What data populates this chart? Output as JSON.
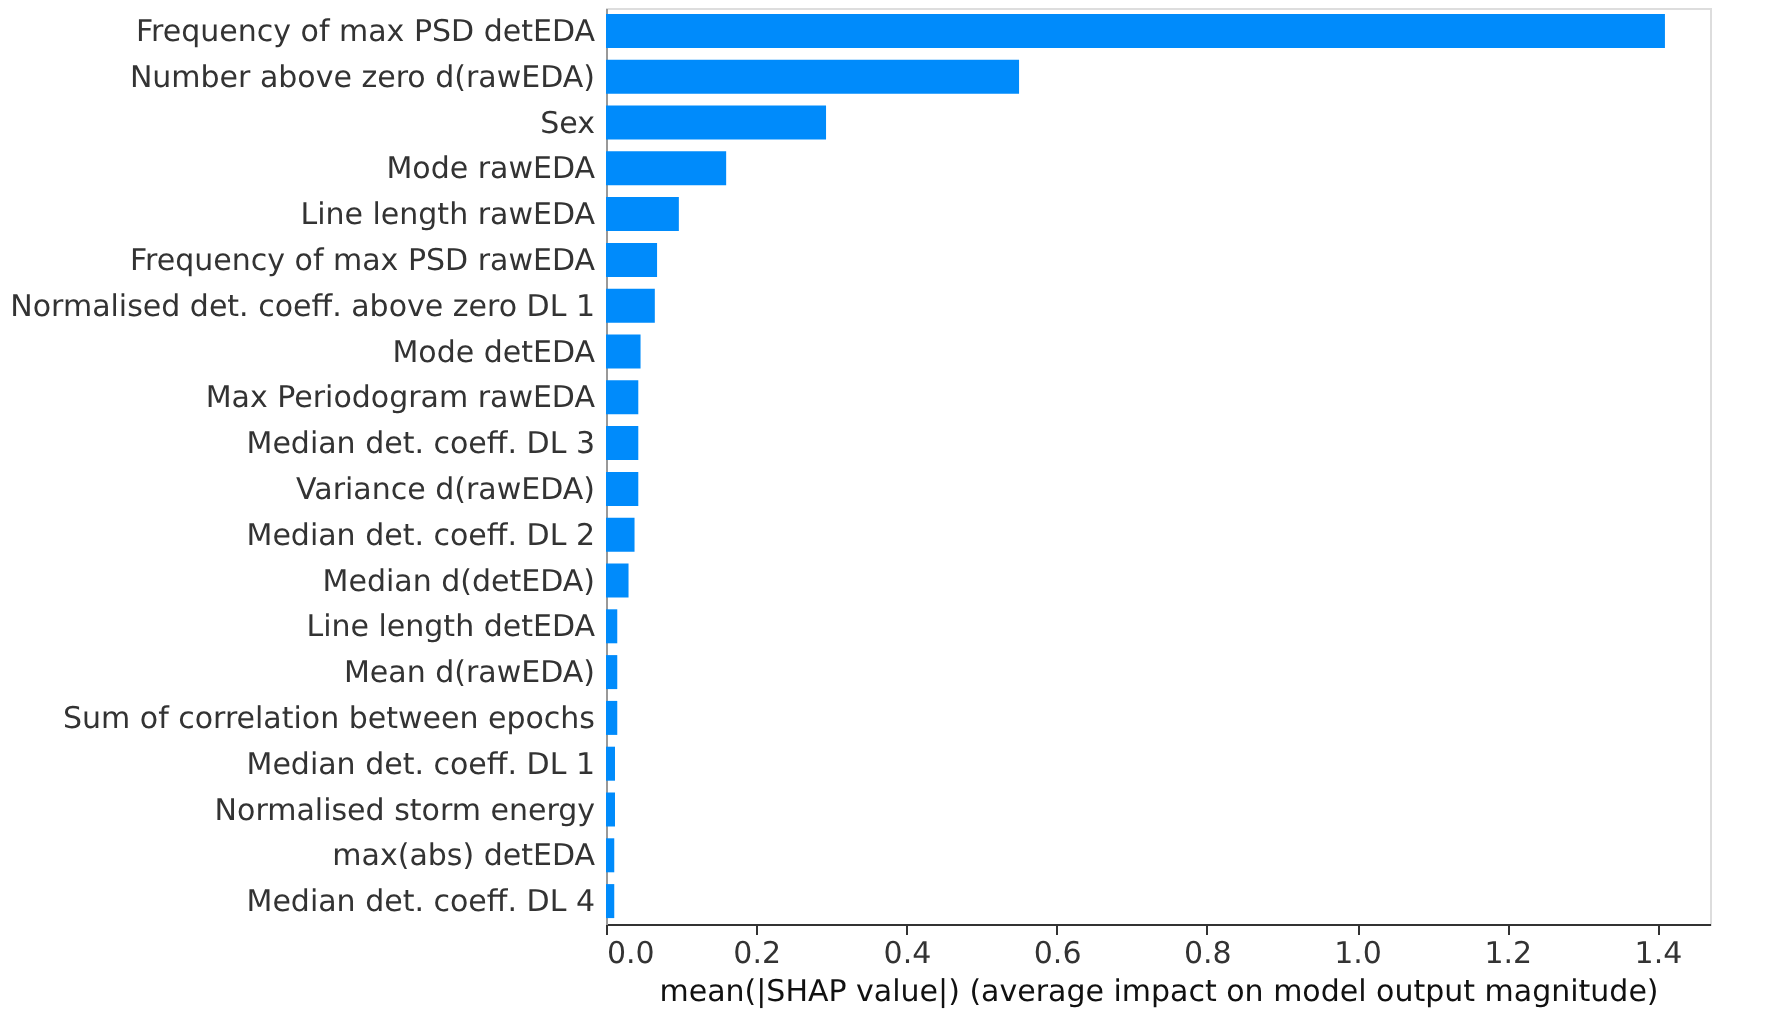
{
  "chart_data": {
    "type": "bar",
    "orientation": "horizontal",
    "xlabel": "mean(|SHAP value|) (average impact on model output magnitude)",
    "categories": [
      "Frequency of max PSD detEDA",
      "Number above zero d(rawEDA)",
      "Sex",
      "Mode rawEDA",
      "Line length rawEDA",
      "Frequency of max PSD rawEDA",
      "Normalised det. coeff. above zero DL 1",
      "Mode detEDA",
      "Max Periodogram rawEDA",
      "Median det. coeff. DL 3",
      "Variance d(rawEDA)",
      "Median det. coeff. DL 2",
      "Median d(detEDA)",
      "Line length detEDA",
      "Mean d(rawEDA)",
      "Sum of correlation between epochs",
      "Median det. coeff. DL 1",
      "Normalised storm energy",
      "max(abs) detEDA",
      "Median det. coeff. DL 4"
    ],
    "values": [
      1.41,
      0.55,
      0.293,
      0.16,
      0.097,
      0.068,
      0.065,
      0.046,
      0.043,
      0.043,
      0.043,
      0.038,
      0.03,
      0.015,
      0.015,
      0.015,
      0.012,
      0.012,
      0.011,
      0.011
    ],
    "color": "#008bfb",
    "xlim": [
      0,
      1.47
    ],
    "xticks": [
      {
        "value": 0,
        "label": "0.0"
      },
      0.2,
      0.4,
      0.6,
      0.8,
      {
        "value": 1,
        "label": "1.0"
      },
      1.2,
      1.4
    ],
    "grid": false
  }
}
